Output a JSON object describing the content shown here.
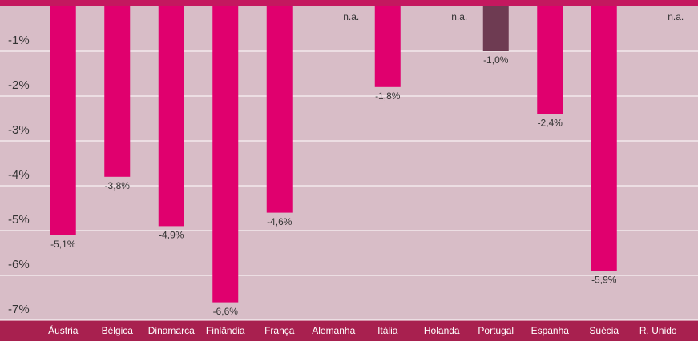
{
  "chart_data": {
    "type": "bar",
    "categories": [
      "Áustria",
      "Bélgica",
      "Dinamarca",
      "Finlândia",
      "França",
      "Alemanha",
      "Itália",
      "Holanda",
      "Portugal",
      "Espanha",
      "Suécia",
      "R. Unido"
    ],
    "values": [
      -5.1,
      -3.8,
      -4.9,
      -6.6,
      -4.6,
      null,
      -1.8,
      null,
      -1.0,
      -2.4,
      -5.9,
      null
    ],
    "value_labels": [
      "-5,1%",
      "-3,8%",
      "-4,9%",
      "-6,6%",
      "-4,6%",
      "n.a.",
      "-1,8%",
      "n.a.",
      "-1,0%",
      "-2,4%",
      "-5,9%",
      "n.a."
    ],
    "colors": [
      "#e0006e",
      "#e0006e",
      "#e0006e",
      "#e0006e",
      "#e0006e",
      "#e0006e",
      "#e0006e",
      "#e0006e",
      "#6e3b52",
      "#e0006e",
      "#e0006e",
      "#e0006e"
    ],
    "ylim": [
      -7,
      0
    ],
    "yticks": [
      {
        "value": -1,
        "label": "-1%"
      },
      {
        "value": -2,
        "label": "-2%"
      },
      {
        "value": -3,
        "label": "-3%"
      },
      {
        "value": -4,
        "label": "-4%"
      },
      {
        "value": -5,
        "label": "-5%"
      },
      {
        "value": -6,
        "label": "-6%"
      },
      {
        "value": -7,
        "label": "-7%"
      }
    ],
    "grid": true
  }
}
